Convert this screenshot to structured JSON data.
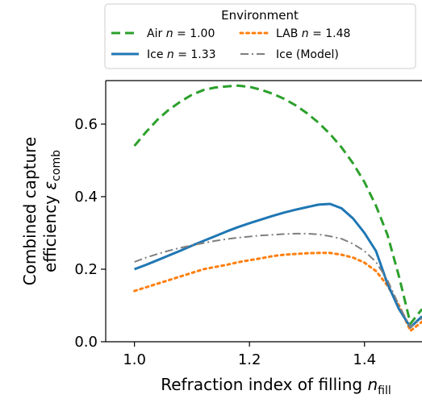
{
  "chart_data": {
    "type": "line",
    "xlabel": "Refraction index of filling",
    "xlabel_symbol": "n",
    "xlabel_sub": "fill",
    "ylabel_line1": "Combined capture",
    "ylabel_line2": "efficiency",
    "ylabel_symbol": "ε",
    "ylabel_sub": "comb",
    "xlim": [
      0.95,
      1.5
    ],
    "ylim": [
      0.0,
      0.72
    ],
    "xticks": [
      1.0,
      1.2,
      1.4
    ],
    "xtick_labels": [
      "1.0",
      "1.2",
      "1.4"
    ],
    "yticks": [
      0.0,
      0.2,
      0.4,
      0.6
    ],
    "ytick_labels": [
      "0.0",
      "0.2",
      "0.4",
      "0.6"
    ],
    "grid": false,
    "legend": {
      "title": "Environment",
      "placement": "top (above axes, right)",
      "columns": 2
    },
    "series": [
      {
        "name": "Air",
        "label_n": "n = 1.00",
        "color": "#2ca02c",
        "style": "dashed",
        "x": [
          1.0,
          1.02,
          1.04,
          1.06,
          1.08,
          1.1,
          1.12,
          1.14,
          1.16,
          1.18,
          1.2,
          1.22,
          1.24,
          1.26,
          1.28,
          1.3,
          1.32,
          1.34,
          1.36,
          1.38,
          1.4,
          1.42,
          1.44,
          1.46,
          1.48,
          1.5
        ],
        "y": [
          0.54,
          0.578,
          0.612,
          0.64,
          0.662,
          0.681,
          0.694,
          0.701,
          0.704,
          0.706,
          0.703,
          0.695,
          0.684,
          0.67,
          0.652,
          0.63,
          0.604,
          0.573,
          0.536,
          0.492,
          0.44,
          0.375,
          0.295,
          0.18,
          0.05,
          0.09
        ]
      },
      {
        "name": "LAB",
        "label_n": "n = 1.48",
        "color": "#ff7f0e",
        "style": "dotted",
        "x": [
          1.0,
          1.02,
          1.04,
          1.06,
          1.08,
          1.1,
          1.12,
          1.14,
          1.16,
          1.18,
          1.2,
          1.22,
          1.24,
          1.26,
          1.28,
          1.3,
          1.32,
          1.34,
          1.36,
          1.38,
          1.4,
          1.42,
          1.44,
          1.46,
          1.48,
          1.5
        ],
        "y": [
          0.14,
          0.15,
          0.16,
          0.17,
          0.18,
          0.19,
          0.2,
          0.206,
          0.212,
          0.219,
          0.225,
          0.23,
          0.236,
          0.24,
          0.242,
          0.244,
          0.245,
          0.245,
          0.24,
          0.232,
          0.218,
          0.195,
          0.155,
          0.1,
          0.03,
          0.055
        ]
      },
      {
        "name": "Ice",
        "label_n": "n = 1.33",
        "color": "#1f77b4",
        "style": "solid",
        "x": [
          1.0,
          1.02,
          1.04,
          1.06,
          1.08,
          1.1,
          1.12,
          1.14,
          1.16,
          1.18,
          1.2,
          1.22,
          1.24,
          1.26,
          1.28,
          1.3,
          1.32,
          1.34,
          1.36,
          1.38,
          1.4,
          1.42,
          1.44,
          1.46,
          1.48,
          1.5
        ],
        "y": [
          0.2,
          0.212,
          0.225,
          0.238,
          0.251,
          0.265,
          0.278,
          0.291,
          0.304,
          0.316,
          0.327,
          0.337,
          0.347,
          0.356,
          0.364,
          0.371,
          0.378,
          0.38,
          0.368,
          0.34,
          0.3,
          0.25,
          0.16,
          0.09,
          0.04,
          0.07
        ]
      },
      {
        "name": "Ice (Model)",
        "label_n": "",
        "color": "#7f7f7f",
        "style": "dashdot",
        "x": [
          1.0,
          1.02,
          1.04,
          1.06,
          1.08,
          1.1,
          1.12,
          1.14,
          1.16,
          1.18,
          1.2,
          1.22,
          1.24,
          1.26,
          1.28,
          1.3,
          1.32,
          1.34,
          1.36,
          1.38,
          1.4,
          1.42,
          1.44,
          1.46,
          1.48,
          1.5
        ],
        "y": [
          0.22,
          0.232,
          0.242,
          0.251,
          0.259,
          0.266,
          0.272,
          0.278,
          0.283,
          0.287,
          0.29,
          0.293,
          0.295,
          0.297,
          0.298,
          0.298,
          0.296,
          0.291,
          0.284,
          0.27,
          0.25,
          0.22,
          0.17,
          0.1,
          0.04,
          0.065
        ]
      }
    ]
  }
}
